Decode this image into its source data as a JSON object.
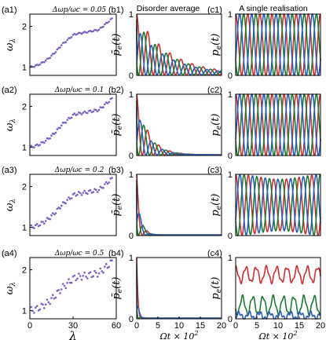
{
  "column_titles": [
    "Disorder average",
    "A single realisation"
  ],
  "shared_axes": {
    "col_a_ylabel": "ωλ",
    "col_b_ylabel": "p̄e(t)",
    "col_c_ylabel": "pe(t)",
    "col_a_xlabel": "λ",
    "col_bc_xlabel": "Ωt × 10²"
  },
  "chart_data": [
    {
      "id": "a1",
      "panel_label": "(a1)",
      "type": "scatter",
      "annotation": "Δωp/ωc = 0.05",
      "xlabel": "",
      "ylabel": "ωλ",
      "xlim": [
        0,
        60
      ],
      "ylim": [
        0.8,
        2.3
      ],
      "yticks": [
        1,
        2
      ],
      "xticks": [],
      "jump": 0.88,
      "color": "#7b5fc4"
    },
    {
      "id": "a2",
      "panel_label": "(a2)",
      "type": "scatter",
      "annotation": "Δωp/ωc = 0.1",
      "xlabel": "",
      "ylabel": "ωλ",
      "xlim": [
        0,
        60
      ],
      "ylim": [
        0.8,
        2.3
      ],
      "yticks": [
        1,
        2
      ],
      "xticks": [],
      "jump": 0.8,
      "color": "#7b5fc4"
    },
    {
      "id": "a3",
      "panel_label": "(a3)",
      "type": "scatter",
      "annotation": "Δωp/ωc = 0.2",
      "xlabel": "",
      "ylabel": "ωλ",
      "xlim": [
        0,
        60
      ],
      "ylim": [
        0.8,
        2.3
      ],
      "yticks": [
        1,
        2
      ],
      "xticks": [],
      "jump": 0.7,
      "color": "#7b5fc4"
    },
    {
      "id": "a4",
      "panel_label": "(a4)",
      "type": "scatter",
      "annotation": "Δωp/ωc = 0.5",
      "xlabel": "λ",
      "ylabel": "ωλ",
      "xlim": [
        0,
        60
      ],
      "ylim": [
        0.8,
        2.3
      ],
      "yticks": [
        1,
        2
      ],
      "xticks": [
        0,
        30,
        60
      ],
      "jump": 0.45,
      "color": "#7b5fc4"
    },
    {
      "id": "b1",
      "panel_label": "(b1)",
      "type": "line",
      "xlabel": "",
      "ylabel": "p̄e(t)",
      "xlim": [
        0,
        20
      ],
      "ylim": [
        0,
        1
      ],
      "yticks": [
        0,
        1
      ],
      "xticks": [],
      "series": [
        "red",
        "green",
        "blue"
      ],
      "decay": 0.13
    },
    {
      "id": "b2",
      "panel_label": "(b2)",
      "type": "line",
      "xlabel": "",
      "ylabel": "p̄e(t)",
      "xlim": [
        0,
        20
      ],
      "ylim": [
        0,
        1
      ],
      "yticks": [
        0,
        1
      ],
      "xticks": [],
      "series": [
        "red",
        "green",
        "blue"
      ],
      "decay": 0.35
    },
    {
      "id": "b3",
      "panel_label": "(b3)",
      "type": "line",
      "xlabel": "",
      "ylabel": "p̄e(t)",
      "xlim": [
        0,
        20
      ],
      "ylim": [
        0,
        1
      ],
      "yticks": [
        0,
        1
      ],
      "xticks": [],
      "series": [
        "red",
        "green",
        "blue"
      ],
      "decay": 1.1
    },
    {
      "id": "b4",
      "panel_label": "(b4)",
      "type": "line",
      "xlabel": "Ωt × 10²",
      "ylabel": "p̄e(t)",
      "xlim": [
        0,
        20
      ],
      "ylim": [
        0,
        1
      ],
      "yticks": [
        0,
        1
      ],
      "xticks": [
        0,
        5,
        10,
        15,
        20
      ],
      "series": [
        "red",
        "green",
        "blue"
      ],
      "decay": 3.0
    },
    {
      "id": "c1",
      "panel_label": "(c1)",
      "type": "line",
      "xlabel": "",
      "ylabel": "pe(t)",
      "xlim": [
        0,
        20
      ],
      "ylim": [
        0,
        1
      ],
      "yticks": [
        0,
        1
      ],
      "xticks": [],
      "series": [
        "red",
        "green",
        "blue"
      ],
      "mode": "full"
    },
    {
      "id": "c2",
      "panel_label": "(c2)",
      "type": "line",
      "xlabel": "",
      "ylabel": "pe(t)",
      "xlim": [
        0,
        20
      ],
      "ylim": [
        0,
        1
      ],
      "yticks": [
        0,
        1
      ],
      "xticks": [],
      "series": [
        "red",
        "green",
        "blue"
      ],
      "mode": "full"
    },
    {
      "id": "c3",
      "panel_label": "(c3)",
      "type": "line",
      "xlabel": "",
      "ylabel": "pe(t)",
      "xlim": [
        0,
        20
      ],
      "ylim": [
        0,
        1
      ],
      "yticks": [
        0,
        1
      ],
      "xticks": [],
      "series": [
        "red",
        "green",
        "blue"
      ],
      "mode": "beat"
    },
    {
      "id": "c4",
      "panel_label": "(c4)",
      "type": "line",
      "xlabel": "Ωt × 10²",
      "ylabel": "pe(t)",
      "xlim": [
        0,
        20
      ],
      "ylim": [
        0,
        1
      ],
      "yticks": [
        0,
        1
      ],
      "xticks": [
        0,
        5,
        10,
        15,
        20
      ],
      "series": [
        "red",
        "green",
        "blue"
      ],
      "mode": "trapped"
    }
  ],
  "colors": {
    "red": "#c83232",
    "green": "#1e7a32",
    "blue": "#2a5cb8",
    "purple": "#7b5fc4"
  }
}
